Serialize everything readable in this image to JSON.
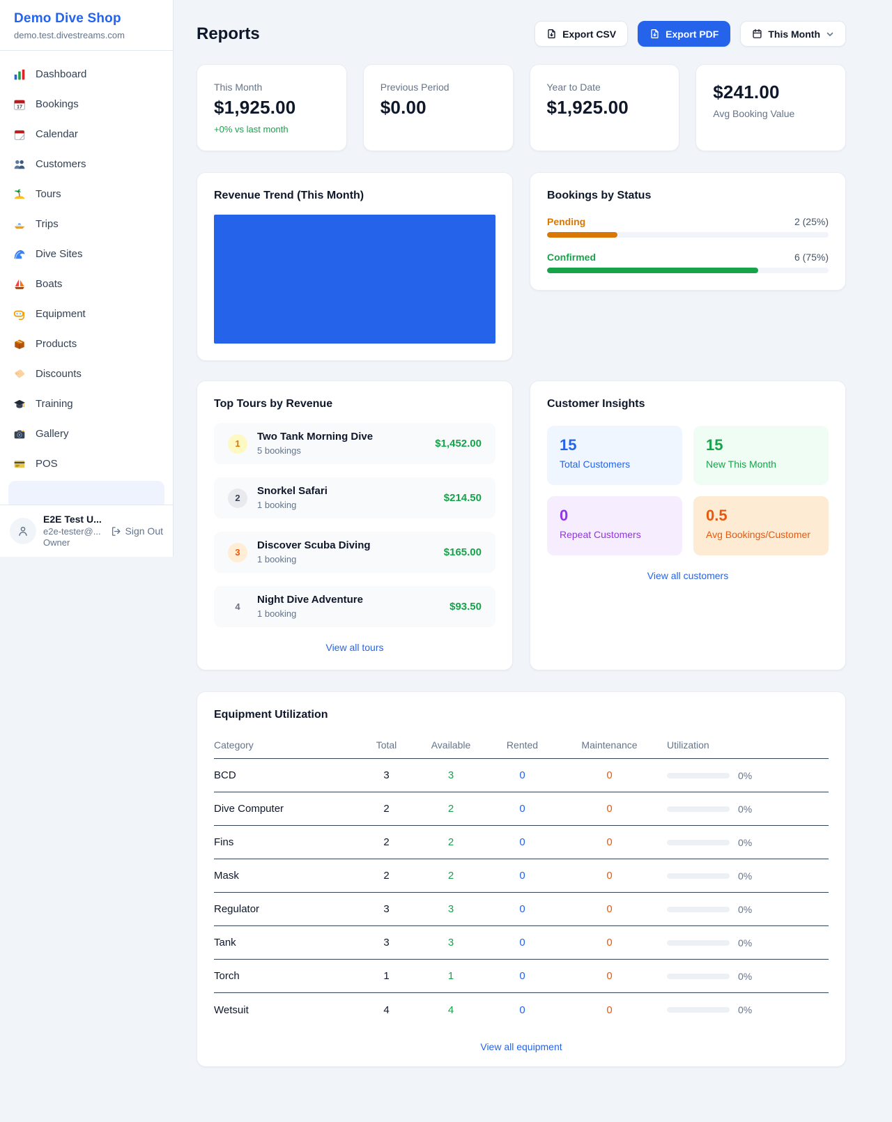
{
  "sidebar": {
    "shop_name": "Demo Dive Shop",
    "shop_domain": "demo.test.divestreams.com",
    "items": [
      {
        "label": "Dashboard",
        "icon": "bar-chart-icon"
      },
      {
        "label": "Bookings",
        "icon": "calendar-date-icon"
      },
      {
        "label": "Calendar",
        "icon": "calendar-icon"
      },
      {
        "label": "Customers",
        "icon": "people-icon"
      },
      {
        "label": "Tours",
        "icon": "island-icon"
      },
      {
        "label": "Trips",
        "icon": "speedboat-icon"
      },
      {
        "label": "Dive Sites",
        "icon": "wave-icon"
      },
      {
        "label": "Boats",
        "icon": "sailboat-icon"
      },
      {
        "label": "Equipment",
        "icon": "dive-mask-icon"
      },
      {
        "label": "Products",
        "icon": "package-icon"
      },
      {
        "label": "Discounts",
        "icon": "tag-icon"
      },
      {
        "label": "Training",
        "icon": "graduation-cap-icon"
      },
      {
        "label": "Gallery",
        "icon": "camera-icon"
      },
      {
        "label": "POS",
        "icon": "credit-card-icon"
      }
    ],
    "user": {
      "name": "E2E Test U...",
      "email": "e2e-tester@...",
      "role": "Owner",
      "sign_out_label": "Sign Out"
    }
  },
  "header": {
    "title": "Reports",
    "export_csv_label": "Export CSV",
    "export_pdf_label": "Export PDF",
    "period_label": "This Month"
  },
  "stats": [
    {
      "label": "This Month",
      "value": "$1,925.00",
      "delta": "+0% vs last month"
    },
    {
      "label": "Previous Period",
      "value": "$0.00"
    },
    {
      "label": "Year to Date",
      "value": "$1,925.00"
    },
    {
      "label": "Avg Booking Value",
      "value": "$241.00",
      "value_first": true
    }
  ],
  "revenue_trend": {
    "title": "Revenue Trend (This Month)",
    "chart_color": "#2563EB"
  },
  "bookings_by_status": {
    "title": "Bookings by Status",
    "rows": [
      {
        "label": "Pending",
        "display": "2 (25%)",
        "percent": 25,
        "color": "#D97706"
      },
      {
        "label": "Confirmed",
        "display": "6 (75%)",
        "percent": 75,
        "color": "#16A34A"
      }
    ]
  },
  "top_tours": {
    "title": "Top Tours by Revenue",
    "link": "View all tours",
    "rows": [
      {
        "rank": "1",
        "name": "Two Tank Morning Dive",
        "bookings": "5 bookings",
        "revenue": "$1,452.00"
      },
      {
        "rank": "2",
        "name": "Snorkel Safari",
        "bookings": "1 booking",
        "revenue": "$214.50"
      },
      {
        "rank": "3",
        "name": "Discover Scuba Diving",
        "bookings": "1 booking",
        "revenue": "$165.00"
      },
      {
        "rank": "4",
        "name": "Night Dive Adventure",
        "bookings": "1 booking",
        "revenue": "$93.50"
      }
    ]
  },
  "customer_insights": {
    "title": "Customer Insights",
    "link": "View all customers",
    "tiles": [
      {
        "value": "15",
        "label": "Total Customers",
        "bg": "#EFF6FF",
        "color": "#2563EB"
      },
      {
        "value": "15",
        "label": "New This Month",
        "bg": "#F0FDF4",
        "color": "#16A34A"
      },
      {
        "value": "0",
        "label": "Repeat Customers",
        "bg": "#F6EEFE",
        "color": "#9333EA"
      },
      {
        "value": "0.5",
        "label": "Avg Bookings/Customer",
        "bg": "#FEEBD3",
        "color": "#EA580C"
      }
    ]
  },
  "equipment": {
    "title": "Equipment Utilization",
    "link": "View all equipment",
    "columns": [
      "Category",
      "Total",
      "Available",
      "Rented",
      "Maintenance",
      "Utilization"
    ],
    "rows": [
      {
        "category": "BCD",
        "total": "3",
        "available": "3",
        "rented": "0",
        "maintenance": "0",
        "utilization": "0%"
      },
      {
        "category": "Dive Computer",
        "total": "2",
        "available": "2",
        "rented": "0",
        "maintenance": "0",
        "utilization": "0%"
      },
      {
        "category": "Fins",
        "total": "2",
        "available": "2",
        "rented": "0",
        "maintenance": "0",
        "utilization": "0%"
      },
      {
        "category": "Mask",
        "total": "2",
        "available": "2",
        "rented": "0",
        "maintenance": "0",
        "utilization": "0%"
      },
      {
        "category": "Regulator",
        "total": "3",
        "available": "3",
        "rented": "0",
        "maintenance": "0",
        "utilization": "0%"
      },
      {
        "category": "Tank",
        "total": "3",
        "available": "3",
        "rented": "0",
        "maintenance": "0",
        "utilization": "0%"
      },
      {
        "category": "Torch",
        "total": "1",
        "available": "1",
        "rented": "0",
        "maintenance": "0",
        "utilization": "0%"
      },
      {
        "category": "Wetsuit",
        "total": "4",
        "available": "4",
        "rented": "0",
        "maintenance": "0",
        "utilization": "0%"
      }
    ]
  },
  "chart_data": [
    {
      "type": "bar",
      "title": "Revenue Trend (This Month)",
      "categories": [
        "This Month"
      ],
      "values": [
        1925.0
      ],
      "xlabel": "",
      "ylabel": "",
      "note": "single bar fills entire plot area as a solid blue rectangle",
      "color": "#2563EB"
    },
    {
      "type": "bar",
      "title": "Bookings by Status",
      "categories": [
        "Pending",
        "Confirmed"
      ],
      "values": [
        2,
        6
      ],
      "percents": [
        25,
        75
      ],
      "colors": [
        "#D97706",
        "#16A34A"
      ],
      "xlabel": "",
      "ylabel": ""
    }
  ]
}
